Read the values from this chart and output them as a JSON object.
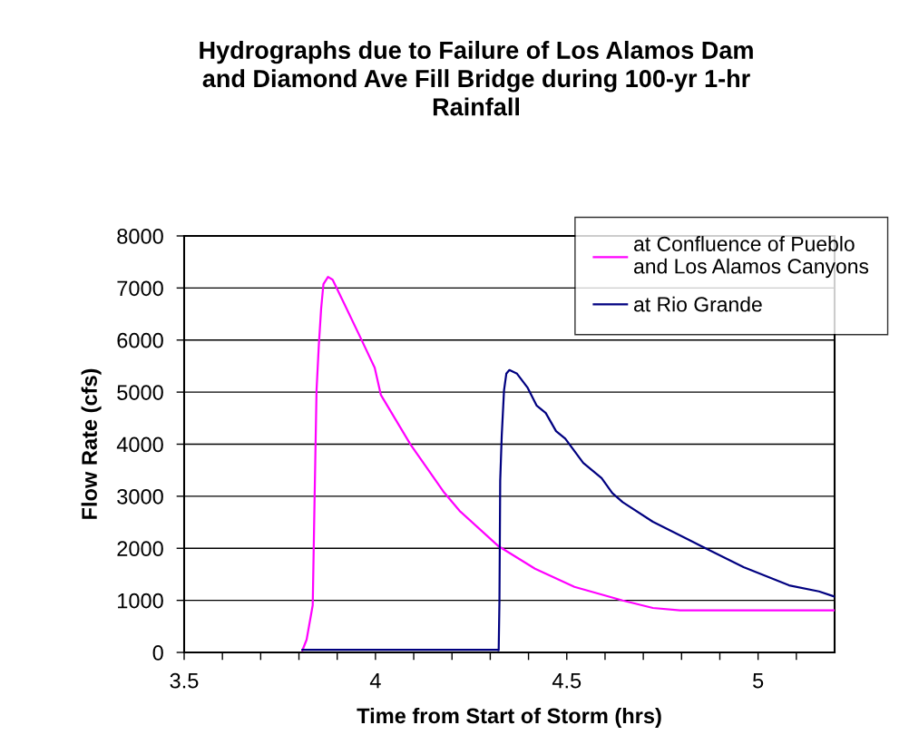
{
  "chart_data": {
    "type": "line",
    "title": "Hydrographs due to Failure of Los Alamos Dam\nand Diamond Ave Fill Bridge during 100-yr 1-hr\nRainfall",
    "xlabel": "Time from Start of Storm (hrs)",
    "ylabel": "Flow Rate (cfs)",
    "xlim": [
      3.5,
      5.2
    ],
    "ylim": [
      0,
      8000
    ],
    "xticks": [
      3.5,
      {
        "value": 3.6,
        "label": null
      },
      {
        "value": 3.7,
        "label": null
      },
      {
        "value": 3.8,
        "label": null
      },
      {
        "value": 3.9,
        "label": null
      },
      4,
      {
        "value": 4.1,
        "label": null
      },
      {
        "value": 4.2,
        "label": null
      },
      {
        "value": 4.3,
        "label": null
      },
      {
        "value": 4.4,
        "label": null
      },
      4.5,
      {
        "value": 4.6,
        "label": null
      },
      {
        "value": 4.7,
        "label": null
      },
      {
        "value": 4.8,
        "label": null
      },
      {
        "value": 4.9,
        "label": null
      },
      5,
      {
        "value": 5.1,
        "label": null
      }
    ],
    "yticks": [
      0,
      1000,
      2000,
      3000,
      4000,
      5000,
      6000,
      7000,
      8000
    ],
    "grid": "y",
    "legend": "top right",
    "marker": "none",
    "line_style": "solid",
    "series": [
      {
        "name": "at Confluence of Pueblo\nand Los Alamos Canyons",
        "color": "#ff00ff",
        "x": [
          3.809,
          3.82,
          3.836,
          3.841,
          3.846,
          3.852,
          3.858,
          3.864,
          3.876,
          3.888,
          3.919,
          3.962,
          3.998,
          4.014,
          4.092,
          4.18,
          4.22,
          4.322,
          4.417,
          4.52,
          4.646,
          4.725,
          4.796,
          5.2
        ],
        "values": [
          40,
          244,
          906,
          3002,
          5035,
          5906,
          6603,
          7073,
          7213,
          7160,
          6690,
          6028,
          5470,
          4948,
          3990,
          3066,
          2718,
          2038,
          1608,
          1260,
          998,
          854,
          807,
          807
        ]
      },
      {
        "name": "at Rio Grande",
        "color": "#000080",
        "x": [
          3.809,
          4.318,
          4.322,
          4.324,
          4.326,
          4.33,
          4.336,
          4.342,
          4.35,
          4.37,
          4.397,
          4.421,
          4.445,
          4.472,
          4.496,
          4.543,
          4.591,
          4.619,
          4.646,
          4.725,
          4.851,
          4.962,
          5.081,
          5.159,
          5.199
        ],
        "values": [
          50,
          50,
          40,
          976,
          3293,
          4164,
          5035,
          5354,
          5424,
          5354,
          5092,
          4744,
          4599,
          4251,
          4106,
          3641,
          3350,
          3061,
          2887,
          2509,
          2044,
          1638,
          1289,
          1172,
          1075
        ]
      }
    ]
  }
}
